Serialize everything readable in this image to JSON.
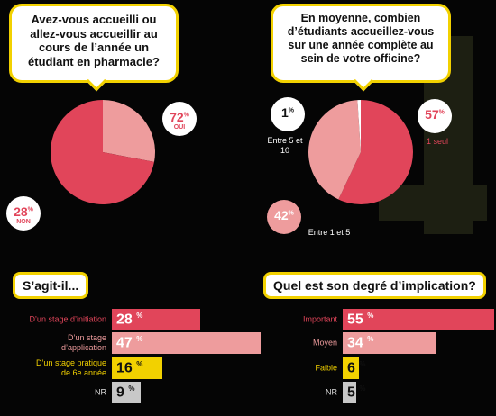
{
  "colors": {
    "accent": "#f2d100",
    "red": "#e1455a",
    "pink": "#ee9c9d",
    "yellow": "#f2d100",
    "gray": "#c8c8c8",
    "white": "#ffffff"
  },
  "q1": {
    "question": "Avez-vous accueilli ou allez-vous accueillir au cours de l’année un étudiant en pharmacie?",
    "yes": {
      "value": "72",
      "label": "OUI"
    },
    "no": {
      "value": "28",
      "label": "NON"
    }
  },
  "q2": {
    "question": "En moyenne, combien d’étudiants accueillez-vous sur une année complète au sein de votre officine?",
    "one": {
      "value": "57",
      "label": "1 seul"
    },
    "one_five": {
      "value": "42",
      "label": "Entre 1 et 5"
    },
    "five_ten": {
      "value": "1",
      "label": "Entre 5 et 10"
    }
  },
  "q3": {
    "title": "S’agit-il...",
    "rows": [
      {
        "label": "D’un stage d’initiation",
        "value": "28"
      },
      {
        "label": "D’un stage d’application",
        "value": "47"
      },
      {
        "label": "D’un stage pratique de 6e année",
        "value": "16"
      },
      {
        "label": "NR",
        "value": "9"
      }
    ]
  },
  "q4": {
    "title": "Quel est son degré d’implication?",
    "rows": [
      {
        "label": "Important",
        "value": "55"
      },
      {
        "label": "Moyen",
        "value": "34"
      },
      {
        "label": "Faible",
        "value": "6"
      },
      {
        "label": "NR",
        "value": "5"
      }
    ]
  },
  "pct_sign": "%",
  "chart_data": [
    {
      "type": "pie",
      "categories": [
        "OUI",
        "NON"
      ],
      "values": [
        72,
        28
      ]
    },
    {
      "type": "pie",
      "categories": [
        "1 seul",
        "Entre 1 et 5",
        "Entre 5 et 10"
      ],
      "values": [
        57,
        42,
        1
      ]
    },
    {
      "type": "bar",
      "title": "S’agit-il...",
      "categories": [
        "D’un stage d’initiation",
        "D’un stage d’application",
        "D’un stage pratique de 6e année",
        "NR"
      ],
      "values": [
        28,
        47,
        16,
        9
      ]
    },
    {
      "type": "bar",
      "title": "Quel est son degré d’implication?",
      "categories": [
        "Important",
        "Moyen",
        "Faible",
        "NR"
      ],
      "values": [
        55,
        34,
        6,
        5
      ]
    }
  ]
}
